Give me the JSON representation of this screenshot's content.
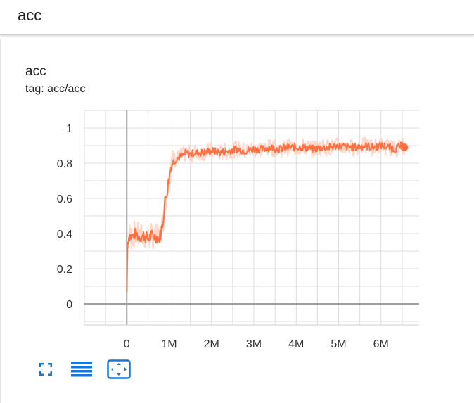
{
  "header": {
    "title": "acc"
  },
  "card": {
    "title": "acc",
    "tag": "tag: acc/acc"
  },
  "colors": {
    "line": "#ff7043",
    "band": "#ffd6c8",
    "accent": "#1976d2"
  },
  "toolbar": {
    "icons": [
      "fullscreen-icon",
      "toggle-log-scale-icon",
      "fit-domain-icon"
    ]
  },
  "chart_data": {
    "type": "line",
    "title": "acc",
    "xlabel": "",
    "ylabel": "",
    "xlim": [
      -1000000,
      6900000
    ],
    "ylim": [
      -0.12,
      1.1
    ],
    "grid": true,
    "x_ticks": [
      0,
      1000000,
      2000000,
      3000000,
      4000000,
      5000000,
      6000000
    ],
    "x_tick_labels": [
      "0",
      "1M",
      "2M",
      "3M",
      "4M",
      "5M",
      "6M"
    ],
    "y_ticks": [
      0,
      0.2,
      0.4,
      0.6,
      0.8,
      1
    ],
    "y_tick_labels": [
      "0",
      "0.2",
      "0.4",
      "0.6",
      "0.8",
      "1"
    ],
    "series": [
      {
        "x": [
          0,
          20000,
          60000,
          120000,
          200000,
          300000,
          400000,
          500000,
          600000,
          700000,
          760000,
          800000,
          850000,
          900000,
          950000,
          1000000,
          1050000,
          1100000,
          1200000,
          1300000,
          1400000,
          1500000,
          1600000,
          1800000,
          2000000,
          2200000,
          2400000,
          2600000,
          2800000,
          3000000,
          3200000,
          3400000,
          3600000,
          3800000,
          4000000,
          4200000,
          4400000,
          4600000,
          4800000,
          5000000,
          5200000,
          5400000,
          5600000,
          5800000,
          6000000,
          6200000,
          6300000,
          6400000,
          6500000,
          6550000
        ],
        "y": [
          0.07,
          0.35,
          0.39,
          0.38,
          0.4,
          0.38,
          0.39,
          0.37,
          0.39,
          0.38,
          0.37,
          0.4,
          0.46,
          0.58,
          0.64,
          0.72,
          0.79,
          0.81,
          0.83,
          0.84,
          0.86,
          0.85,
          0.86,
          0.86,
          0.87,
          0.86,
          0.87,
          0.88,
          0.87,
          0.88,
          0.88,
          0.89,
          0.88,
          0.89,
          0.89,
          0.89,
          0.88,
          0.89,
          0.89,
          0.9,
          0.89,
          0.89,
          0.9,
          0.89,
          0.9,
          0.89,
          0.88,
          0.89,
          0.9,
          0.89
        ]
      }
    ]
  }
}
